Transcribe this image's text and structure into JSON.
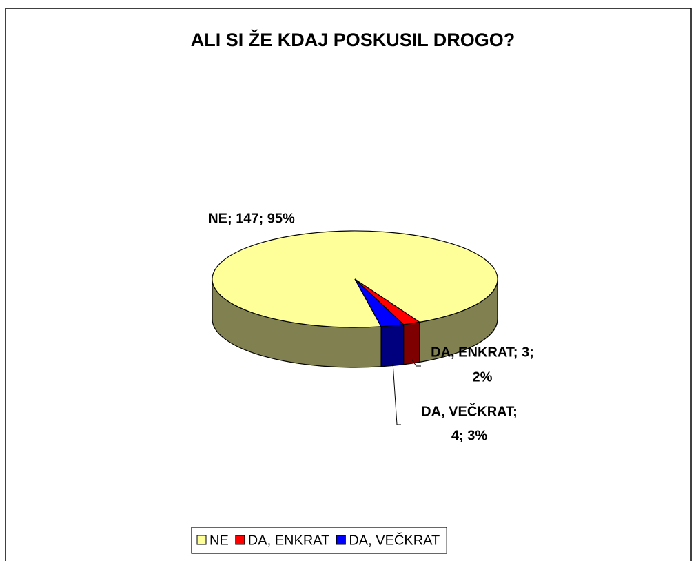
{
  "chart_data": {
    "type": "pie",
    "title": "ALI SI ŽE KDAJ POSKUSIL DROGO?",
    "categories": [
      "NE",
      "DA, ENKRAT",
      "DA, VEČKRAT"
    ],
    "values": [
      147,
      3,
      4
    ],
    "value_labels": [
      [
        "NE; 147; 95%"
      ],
      [
        "DA, ENKRAT; 3;",
        "2%"
      ],
      [
        "DA, VEČKRAT;",
        "4; 3%"
      ]
    ],
    "colors": [
      "#ffff99",
      "#ff0000",
      "#0000ff"
    ],
    "legend": "bottom"
  }
}
